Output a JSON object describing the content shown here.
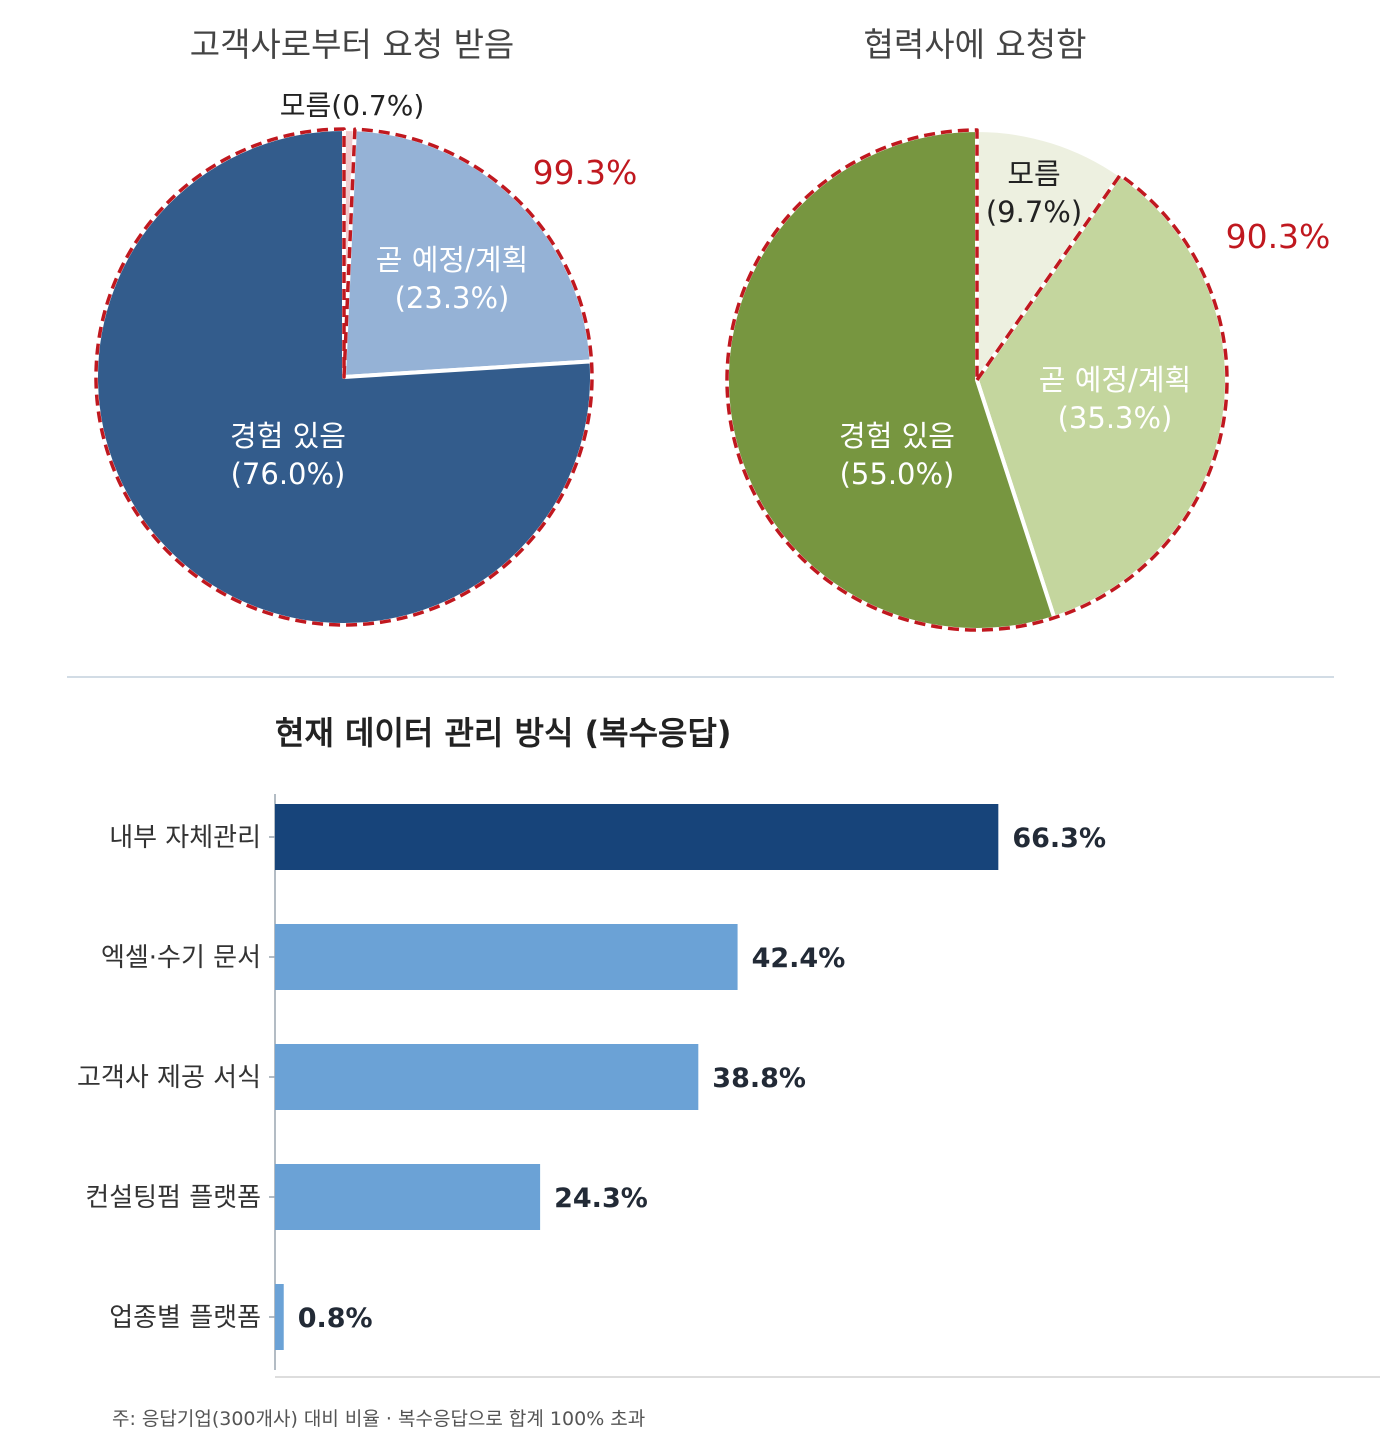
{
  "chart_data": [
    {
      "type": "pie",
      "title": "고객사로부터 요청 받음",
      "slices": [
        {
          "label": "모름",
          "value": 0.7,
          "display": "(0.7%)",
          "color": "#F1C9CC"
        },
        {
          "label": "곧 예정/계획",
          "value": 23.3,
          "display": "(23.3%)",
          "color": "#95B2D6"
        },
        {
          "label": "경험 있음",
          "value": 76.0,
          "display": "(76.0%)",
          "color": "#335C8C"
        }
      ],
      "highlight_total": "99.3%",
      "outline_color": "#C0181F"
    },
    {
      "type": "pie",
      "title": "협력사에 요청함",
      "slices": [
        {
          "label": "모름",
          "value": 9.7,
          "display": "(9.7%)",
          "color": "#EDF0E0"
        },
        {
          "label": "곧 예정/계획",
          "value": 35.3,
          "display": "(35.3%)",
          "color": "#C4D69E"
        },
        {
          "label": "경험 있음",
          "value": 55.0,
          "display": "(55.0%)",
          "color": "#779640"
        }
      ],
      "highlight_total": "90.3%",
      "outline_color": "#C0181F"
    },
    {
      "type": "bar",
      "orientation": "horizontal",
      "title": "현재 데이터 관리 방식 (복수응답)",
      "categories": [
        "내부 자체관리",
        "엑셀·수기 문서",
        "고객사 제공 서식",
        "컨설팅펌 플랫폼",
        "업종별 플랫폼"
      ],
      "values": [
        66.3,
        42.4,
        38.8,
        24.3,
        0.8
      ],
      "value_labels": [
        "66.3%",
        "42.4%",
        "38.8%",
        "24.3%",
        "0.8%"
      ],
      "colors": [
        "#17447A",
        "#6BA2D6",
        "#6BA2D6",
        "#6BA2D6",
        "#6BA2D6"
      ],
      "xlim": [
        0,
        100
      ],
      "grid": false
    }
  ],
  "footnote": "주: 응답기업(300개사) 대비 비율 · 복수응답으로 합계 100% 초과"
}
